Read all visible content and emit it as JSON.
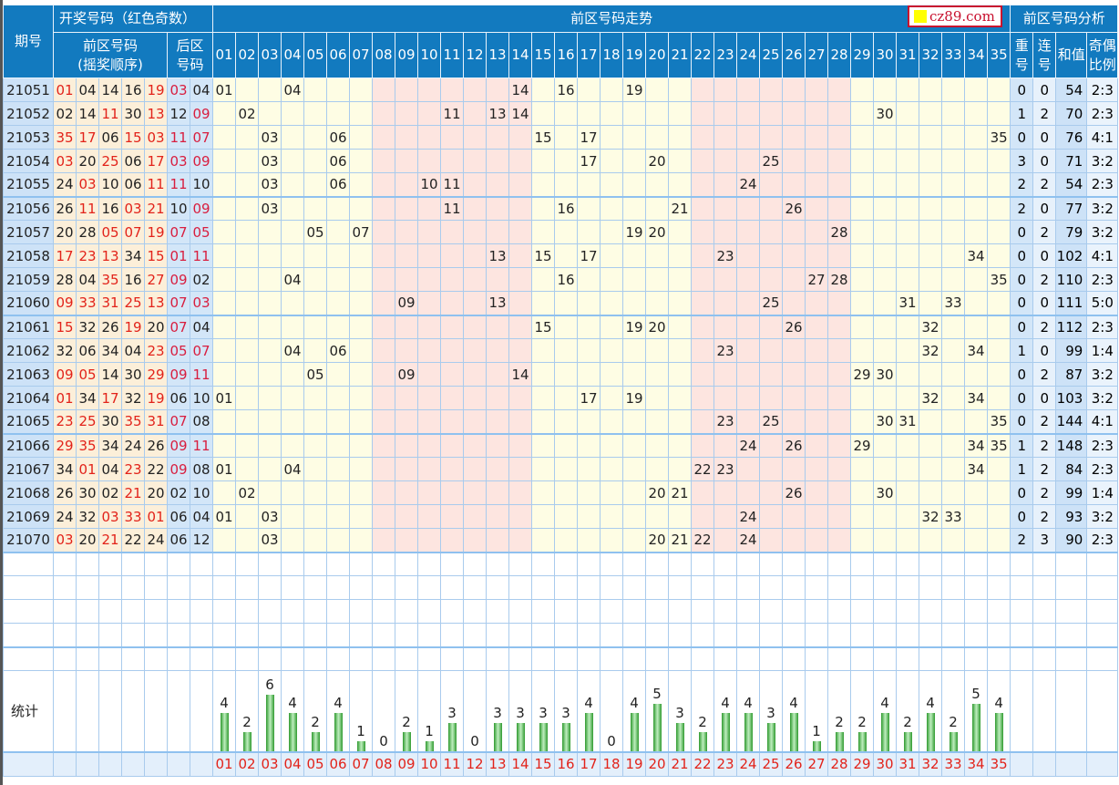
{
  "header": {
    "period": "期号",
    "draw_group": "开奖号码（红色奇数）",
    "front_draw_line1": "前区号码",
    "front_draw_line2": "(摇奖顺序)",
    "back_draw_line1": "后区",
    "back_draw_line2": "号码",
    "trend_group": "前区号码走势",
    "analysis_group": "前区号码分析",
    "repeat_line1": "重",
    "repeat_line2": "号",
    "consec_line1": "连",
    "consec_line2": "号",
    "sum": "和值",
    "ratio_line1": "奇偶",
    "ratio_line2": "比例",
    "numbers": [
      "01",
      "02",
      "03",
      "04",
      "05",
      "06",
      "07",
      "08",
      "09",
      "10",
      "11",
      "12",
      "13",
      "14",
      "15",
      "16",
      "17",
      "18",
      "19",
      "20",
      "21",
      "22",
      "23",
      "24",
      "25",
      "26",
      "27",
      "28",
      "29",
      "30",
      "31",
      "32",
      "33",
      "34",
      "35"
    ]
  },
  "watermark": "cz89.com",
  "colors": {
    "odd": "#e2231a",
    "header_bg": "#127abf",
    "trend_yellow": "#fefde4",
    "trend_pink": "#fde5e0",
    "bar_green": "#2f9a2f"
  },
  "rows": [
    {
      "period": "21051",
      "front": [
        "01",
        "04",
        "14",
        "16",
        "19"
      ],
      "back": [
        "03",
        "04"
      ],
      "repeat": "0",
      "consec": "0",
      "sum": "54",
      "ratio": "2:3"
    },
    {
      "period": "21052",
      "front": [
        "02",
        "14",
        "11",
        "30",
        "13"
      ],
      "back": [
        "12",
        "09"
      ],
      "repeat": "1",
      "consec": "2",
      "sum": "70",
      "ratio": "2:3"
    },
    {
      "period": "21053",
      "front": [
        "35",
        "17",
        "06",
        "15",
        "03"
      ],
      "back": [
        "11",
        "07"
      ],
      "repeat": "0",
      "consec": "0",
      "sum": "76",
      "ratio": "4:1"
    },
    {
      "period": "21054",
      "front": [
        "03",
        "20",
        "25",
        "06",
        "17"
      ],
      "back": [
        "03",
        "09"
      ],
      "repeat": "3",
      "consec": "0",
      "sum": "71",
      "ratio": "3:2"
    },
    {
      "period": "21055",
      "front": [
        "24",
        "03",
        "10",
        "06",
        "11"
      ],
      "back": [
        "11",
        "10"
      ],
      "repeat": "2",
      "consec": "2",
      "sum": "54",
      "ratio": "2:3"
    },
    {
      "period": "21056",
      "front": [
        "26",
        "11",
        "16",
        "03",
        "21"
      ],
      "back": [
        "10",
        "09"
      ],
      "repeat": "2",
      "consec": "0",
      "sum": "77",
      "ratio": "3:2"
    },
    {
      "period": "21057",
      "front": [
        "20",
        "28",
        "05",
        "07",
        "19"
      ],
      "back": [
        "07",
        "05"
      ],
      "repeat": "0",
      "consec": "2",
      "sum": "79",
      "ratio": "3:2"
    },
    {
      "period": "21058",
      "front": [
        "17",
        "23",
        "13",
        "34",
        "15"
      ],
      "back": [
        "01",
        "11"
      ],
      "repeat": "0",
      "consec": "0",
      "sum": "102",
      "ratio": "4:1"
    },
    {
      "period": "21059",
      "front": [
        "28",
        "04",
        "35",
        "16",
        "27"
      ],
      "back": [
        "09",
        "02"
      ],
      "repeat": "0",
      "consec": "2",
      "sum": "110",
      "ratio": "2:3"
    },
    {
      "period": "21060",
      "front": [
        "09",
        "33",
        "31",
        "25",
        "13"
      ],
      "back": [
        "07",
        "03"
      ],
      "repeat": "0",
      "consec": "0",
      "sum": "111",
      "ratio": "5:0"
    },
    {
      "period": "21061",
      "front": [
        "15",
        "32",
        "26",
        "19",
        "20"
      ],
      "back": [
        "07",
        "04"
      ],
      "repeat": "0",
      "consec": "2",
      "sum": "112",
      "ratio": "2:3"
    },
    {
      "period": "21062",
      "front": [
        "32",
        "06",
        "34",
        "04",
        "23"
      ],
      "back": [
        "05",
        "07"
      ],
      "repeat": "1",
      "consec": "0",
      "sum": "99",
      "ratio": "1:4"
    },
    {
      "period": "21063",
      "front": [
        "09",
        "05",
        "14",
        "30",
        "29"
      ],
      "back": [
        "09",
        "11"
      ],
      "repeat": "0",
      "consec": "2",
      "sum": "87",
      "ratio": "3:2"
    },
    {
      "period": "21064",
      "front": [
        "01",
        "34",
        "17",
        "32",
        "19"
      ],
      "back": [
        "06",
        "10"
      ],
      "repeat": "0",
      "consec": "0",
      "sum": "103",
      "ratio": "3:2"
    },
    {
      "period": "21065",
      "front": [
        "23",
        "25",
        "30",
        "35",
        "31"
      ],
      "back": [
        "07",
        "08"
      ],
      "repeat": "0",
      "consec": "2",
      "sum": "144",
      "ratio": "4:1"
    },
    {
      "period": "21066",
      "front": [
        "29",
        "35",
        "34",
        "24",
        "26"
      ],
      "back": [
        "09",
        "11"
      ],
      "repeat": "1",
      "consec": "2",
      "sum": "148",
      "ratio": "2:3"
    },
    {
      "period": "21067",
      "front": [
        "34",
        "01",
        "04",
        "23",
        "22"
      ],
      "back": [
        "09",
        "08"
      ],
      "repeat": "1",
      "consec": "2",
      "sum": "84",
      "ratio": "2:3"
    },
    {
      "period": "21068",
      "front": [
        "26",
        "30",
        "02",
        "21",
        "20"
      ],
      "back": [
        "02",
        "10"
      ],
      "repeat": "0",
      "consec": "2",
      "sum": "99",
      "ratio": "1:4"
    },
    {
      "period": "21069",
      "front": [
        "24",
        "32",
        "03",
        "33",
        "01"
      ],
      "back": [
        "06",
        "04"
      ],
      "repeat": "0",
      "consec": "2",
      "sum": "93",
      "ratio": "3:2"
    },
    {
      "period": "21070",
      "front": [
        "03",
        "20",
        "21",
        "22",
        "24"
      ],
      "back": [
        "06",
        "12"
      ],
      "repeat": "2",
      "consec": "3",
      "sum": "90",
      "ratio": "2:3"
    }
  ],
  "stats": {
    "label": "统计",
    "counts": [
      4,
      2,
      6,
      4,
      2,
      4,
      1,
      0,
      2,
      1,
      3,
      0,
      3,
      3,
      3,
      3,
      4,
      0,
      4,
      5,
      3,
      2,
      4,
      4,
      3,
      4,
      1,
      2,
      2,
      4,
      2,
      4,
      2,
      5,
      4
    ]
  }
}
